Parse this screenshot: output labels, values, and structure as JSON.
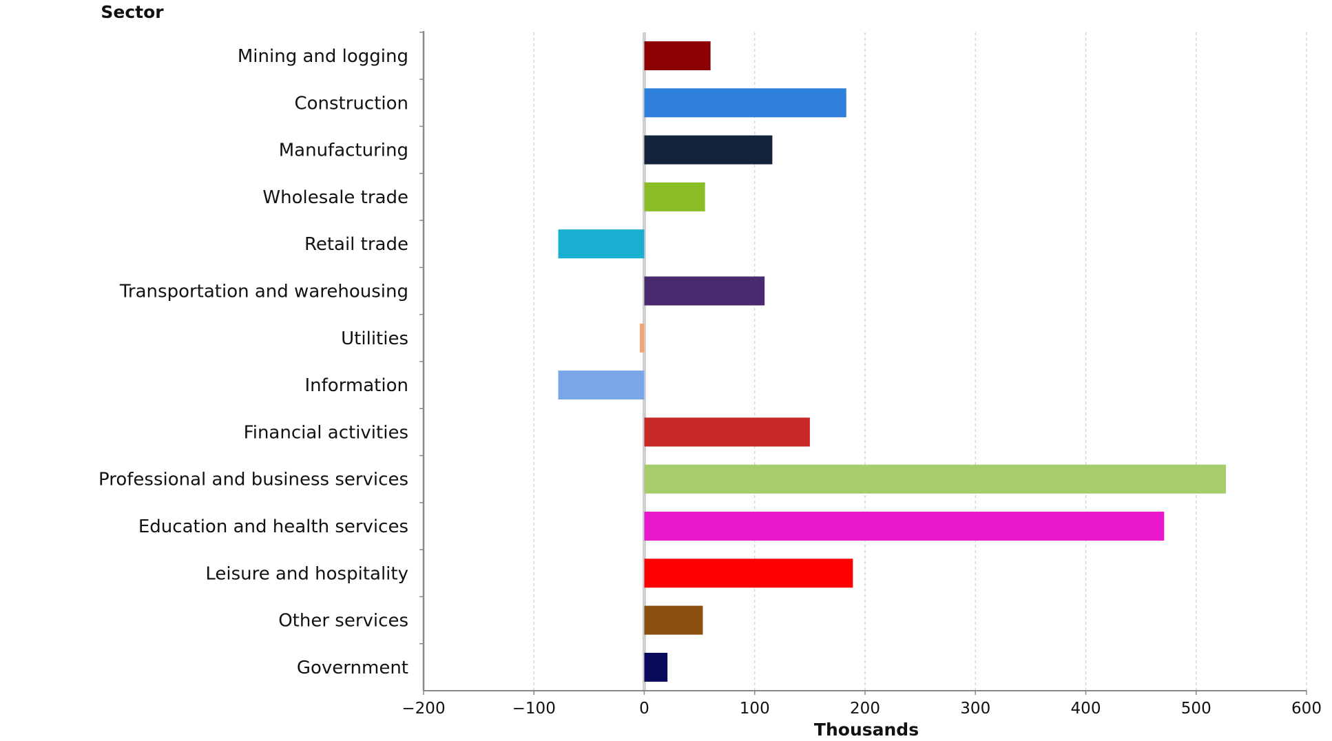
{
  "chart_data": {
    "type": "bar",
    "orientation": "horizontal",
    "title": "",
    "ylabel": "Sector",
    "xlabel": "Thousands",
    "xlim": [
      -200,
      600
    ],
    "xticks": [
      -200,
      -100,
      0,
      100,
      200,
      300,
      400,
      500,
      600
    ],
    "xtick_labels": [
      "−200",
      "−100",
      "0",
      "100",
      "200",
      "300",
      "400",
      "500",
      "600"
    ],
    "grid": "vertical dashed",
    "categories": [
      "Mining and logging",
      "Construction",
      "Manufacturing",
      "Wholesale trade",
      "Retail trade",
      "Transportation and warehousing",
      "Utilities",
      "Information",
      "Financial activities",
      "Professional and business services",
      "Education and health services",
      "Leisure and hospitality",
      "Other services",
      "Government"
    ],
    "values": [
      60,
      183,
      116,
      55,
      -78,
      109,
      -4,
      -78,
      150,
      527,
      471,
      189,
      53,
      21
    ],
    "colors": [
      "#8b0000",
      "#2f80dc",
      "#13233c",
      "#8abd25",
      "#1aafd0",
      "#4a2a6e",
      "#f4a46e",
      "#7aa5e6",
      "#c62828",
      "#a6cc6c",
      "#e617cc",
      "#ff0000",
      "#8b5010",
      "#0a0a5c"
    ]
  }
}
